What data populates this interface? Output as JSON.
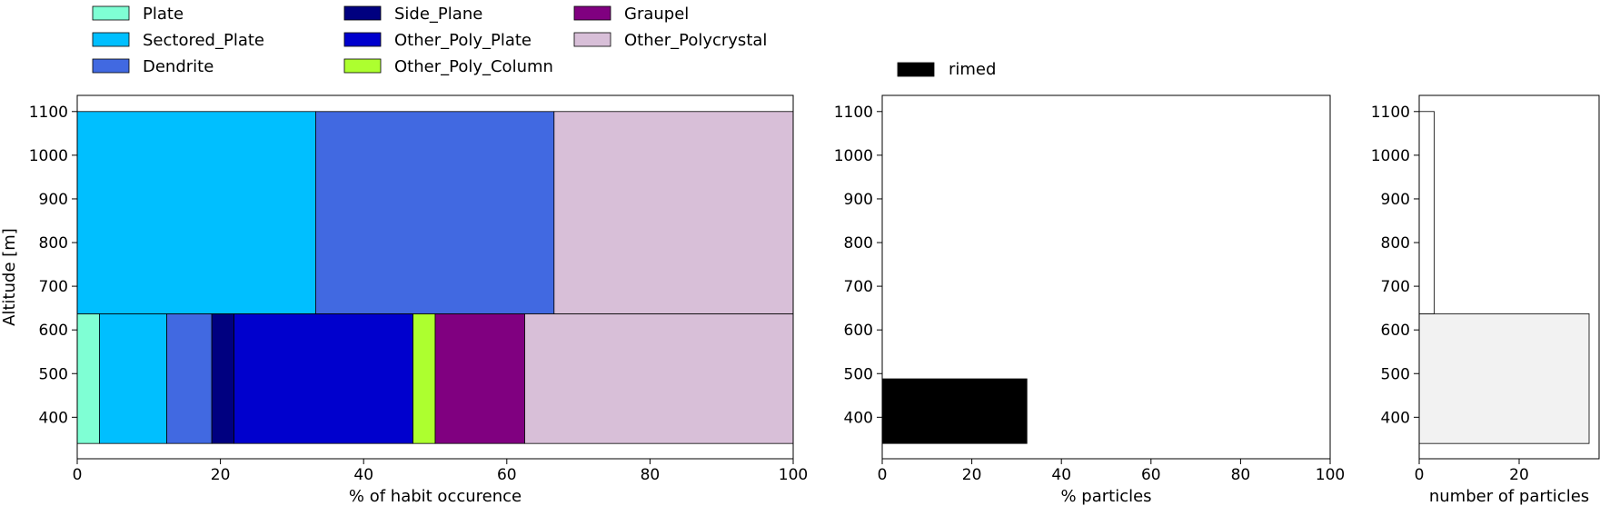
{
  "chart_data": [
    {
      "type": "bar",
      "orientation": "horizontal-stacked",
      "title": "",
      "xlabel": "% of habit occurence",
      "ylabel": "Altitude [m]",
      "xlim": [
        0,
        100
      ],
      "ylim": [
        305,
        1137
      ],
      "xticks": [
        0,
        20,
        40,
        60,
        80,
        100
      ],
      "yticks": [
        400,
        500,
        600,
        700,
        800,
        900,
        1000,
        1100
      ],
      "grid": false,
      "legend_position": "above",
      "legend": [
        "Plate",
        "Sectored_Plate",
        "Dendrite",
        "Side_Plane",
        "Other_Poly_Plate",
        "Other_Poly_Column",
        "Graupel",
        "Other_Polycrystal"
      ],
      "series": [
        {
          "name": "Plate",
          "color": "#7FFFD4"
        },
        {
          "name": "Sectored_Plate",
          "color": "#00BFFF"
        },
        {
          "name": "Dendrite",
          "color": "#4169E1"
        },
        {
          "name": "Side_Plane",
          "color": "#000080"
        },
        {
          "name": "Other_Poly_Plate",
          "color": "#0000CD"
        },
        {
          "name": "Other_Poly_Column",
          "color": "#ADFF2F"
        },
        {
          "name": "Graupel",
          "color": "#800080"
        },
        {
          "name": "Other_Polycrystal",
          "color": "#D8BFD8"
        }
      ],
      "bins": [
        {
          "y_bottom": 340,
          "y_top": 637,
          "values": {
            "Plate": 3.1,
            "Sectored_Plate": 9.4,
            "Dendrite": 6.3,
            "Side_Plane": 3.1,
            "Other_Poly_Plate": 25.0,
            "Other_Poly_Column": 3.1,
            "Graupel": 12.5,
            "Other_Polycrystal": 37.5
          }
        },
        {
          "y_bottom": 637,
          "y_top": 1100,
          "values": {
            "Sectored_Plate": 33.3,
            "Dendrite": 33.3,
            "Other_Polycrystal": 33.4
          }
        }
      ]
    },
    {
      "type": "bar",
      "orientation": "horizontal",
      "title": "",
      "xlabel": "% particles",
      "ylabel": "",
      "xlim": [
        0,
        100
      ],
      "ylim": [
        305,
        1137
      ],
      "xticks": [
        0,
        20,
        40,
        60,
        80,
        100
      ],
      "yticks": [
        400,
        500,
        600,
        700,
        800,
        900,
        1000,
        1100
      ],
      "grid": false,
      "legend_position": "above",
      "legend": [
        "rimed"
      ],
      "series": [
        {
          "name": "rimed",
          "color": "#000000"
        }
      ],
      "bars": [
        {
          "y_bottom": 340,
          "y_top": 488,
          "value": 32.3
        }
      ]
    },
    {
      "type": "bar",
      "orientation": "horizontal",
      "title": "",
      "xlabel": "number of particles",
      "ylabel": "",
      "xlim": [
        0,
        36
      ],
      "ylim": [
        305,
        1137
      ],
      "xticks": [
        0,
        20
      ],
      "yticks": [
        400,
        500,
        600,
        700,
        800,
        900,
        1000,
        1100
      ],
      "grid": false,
      "bars": [
        {
          "y_bottom": 340,
          "y_top": 637,
          "value": 34,
          "fill": "#F2F2F2"
        },
        {
          "y_bottom": 637,
          "y_top": 1100,
          "value": 3,
          "fill": "#FFFFFF"
        }
      ]
    }
  ]
}
